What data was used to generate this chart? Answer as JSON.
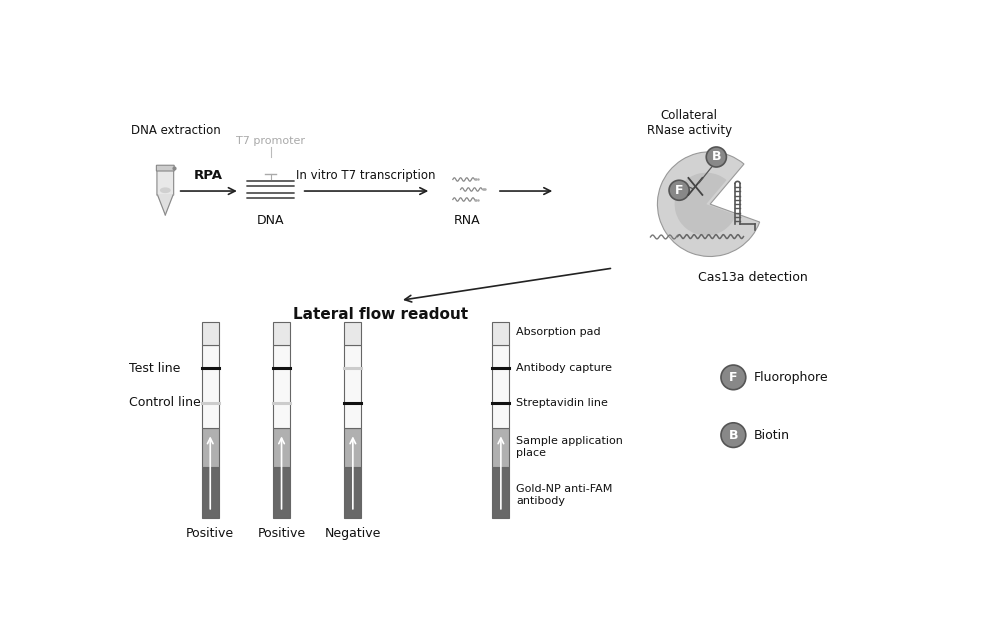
{
  "bg_color": "#ffffff",
  "top_row": {
    "dna_extraction_label": "DNA extraction",
    "rpa_label": "RPA",
    "dna_label": "DNA",
    "t7_promoter_label": "T7 promoter",
    "invitro_label": "In vitro T7 transcription",
    "rna_label": "RNA",
    "cas13a_label": "Cas13a detection",
    "collateral_label": "Collateral\nRNase activity"
  },
  "bottom_row": {
    "title": "Lateral flow readout",
    "labels_left": [
      "Test line",
      "Control line"
    ],
    "strip_labels": [
      "Positive",
      "Positive",
      "Negative"
    ],
    "right_labels": [
      "Absorption pad",
      "Antibody capture",
      "Streptavidin line",
      "Sample application\nplace",
      "Gold-NP anti-FAM\nantibody"
    ],
    "legend": {
      "F_label": "Fluorophore",
      "B_label": "Biotin"
    }
  },
  "colors": {
    "strip_light_gray": "#b8b8b8",
    "strip_dark_gray": "#686868",
    "strip_border": "#666666",
    "black_line": "#111111",
    "F_circle": "#888888",
    "B_circle": "#888888",
    "text_dark": "#111111",
    "text_gray": "#999999",
    "cas13a_body": "#d0d0d0",
    "cas13a_groove": "#c0c0c0"
  }
}
